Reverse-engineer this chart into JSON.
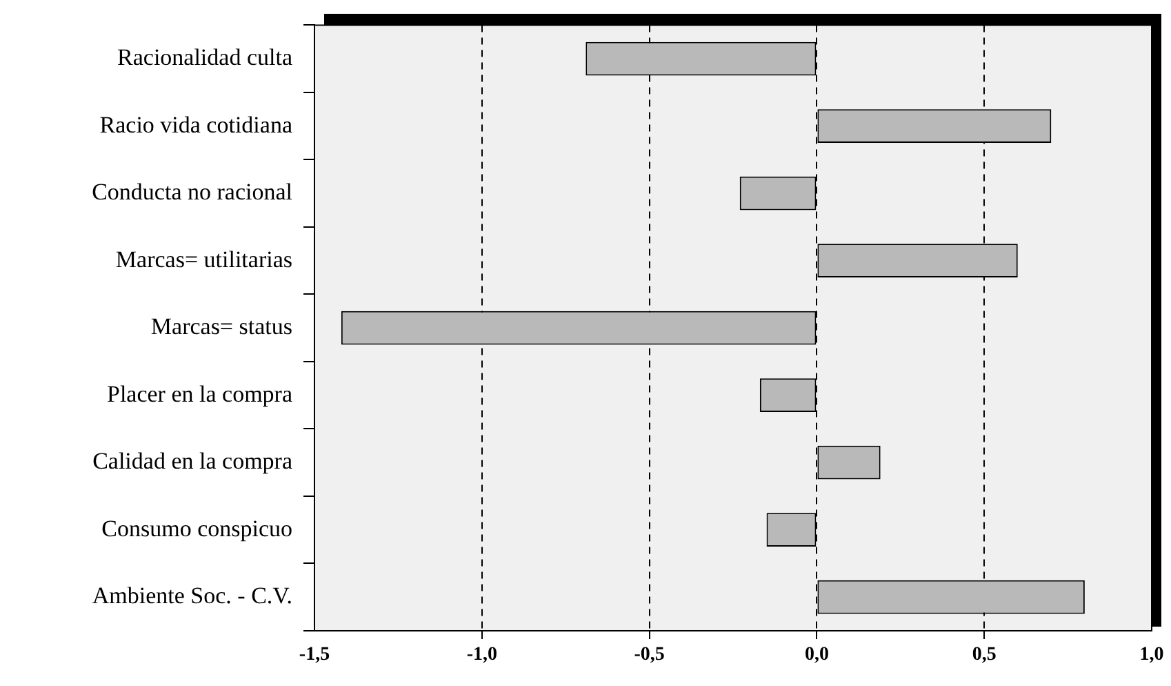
{
  "chart_data": {
    "type": "bar",
    "orientation": "horizontal",
    "categories": [
      "Racionalidad culta",
      "Racio vida cotidiana",
      "Conducta no racional",
      "Marcas= utilitarias",
      "Marcas= status",
      "Placer en la compra",
      "Calidad en la compra",
      "Consumo conspicuo",
      "Ambiente Soc. - C.V."
    ],
    "values": [
      -0.69,
      0.7,
      -0.23,
      0.6,
      -1.42,
      -0.17,
      0.19,
      -0.15,
      0.8
    ],
    "color": "#b9b9b9",
    "xlim": [
      -1.5,
      1.0
    ],
    "xticks": [
      {
        "value": -1.5,
        "label": "-1,5"
      },
      {
        "value": -1.0,
        "label": "-1,0"
      },
      {
        "value": -0.5,
        "label": "-0,5"
      },
      {
        "value": 0,
        "label": "0,0"
      },
      {
        "value": 0.5,
        "label": "0,5"
      },
      {
        "value": 1.0,
        "label": "1,0"
      }
    ],
    "grid": "x",
    "legend": false
  }
}
